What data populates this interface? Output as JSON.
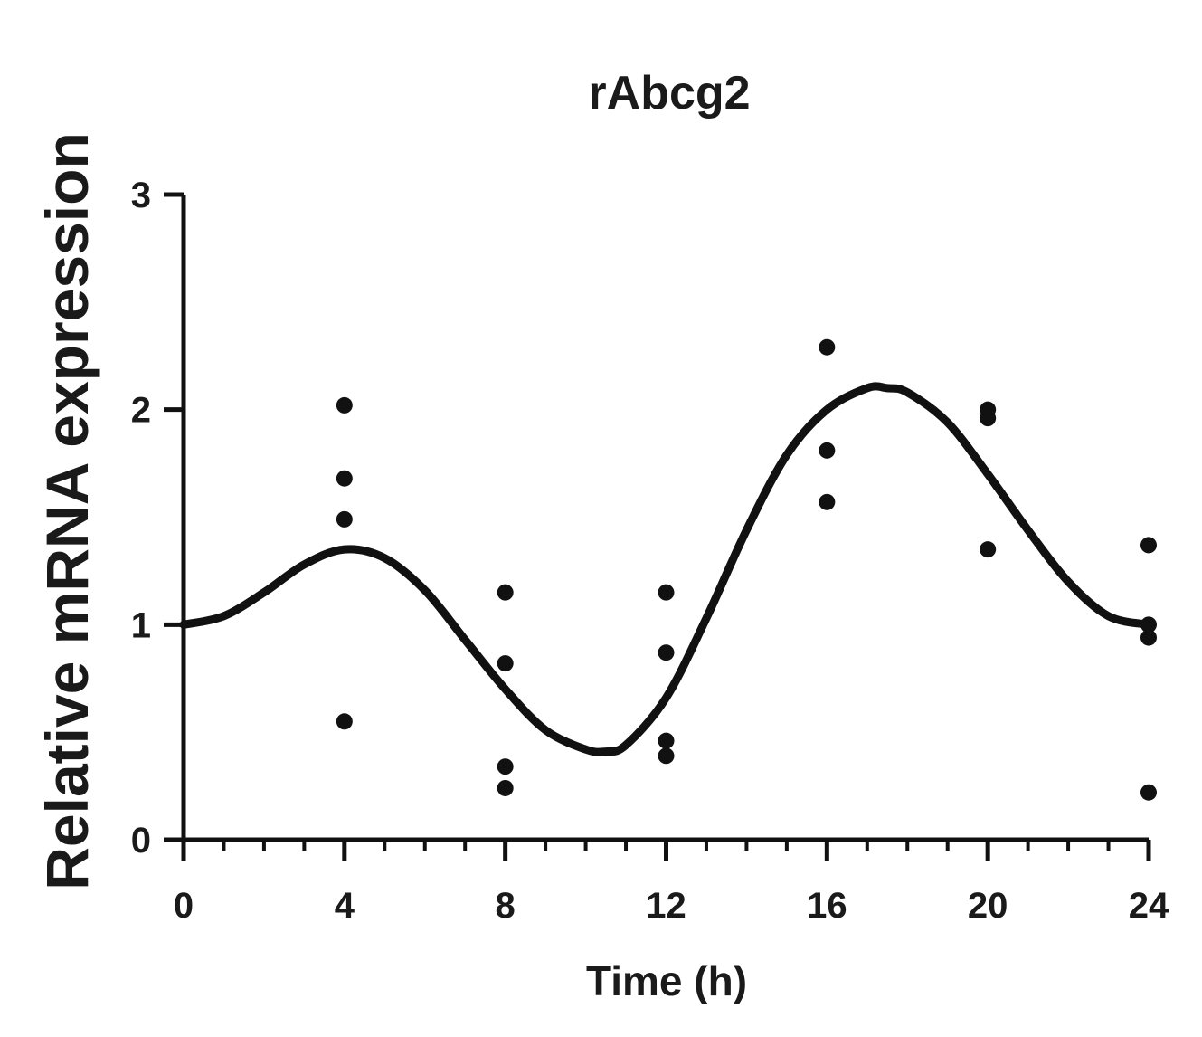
{
  "chart_data": {
    "type": "scatter",
    "title": "rAbcg2",
    "xlabel": "Time (h)",
    "ylabel": "Relative mRNA expression",
    "xlim": [
      0,
      24
    ],
    "ylim": [
      0,
      3
    ],
    "xticks": [
      0,
      4,
      8,
      12,
      16,
      20,
      24
    ],
    "yticks": [
      0,
      1,
      2,
      3
    ],
    "x_minor_step": 1,
    "grid": false,
    "legend": "none",
    "colors": {
      "points": "#111111",
      "curve": "#111111",
      "axis": "#111111"
    },
    "points": [
      {
        "x": 4,
        "y": 2.02
      },
      {
        "x": 4,
        "y": 1.68
      },
      {
        "x": 4,
        "y": 1.49
      },
      {
        "x": 4,
        "y": 0.55
      },
      {
        "x": 8,
        "y": 1.15
      },
      {
        "x": 8,
        "y": 0.82
      },
      {
        "x": 8,
        "y": 0.34
      },
      {
        "x": 8,
        "y": 0.24
      },
      {
        "x": 12,
        "y": 1.15
      },
      {
        "x": 12,
        "y": 0.87
      },
      {
        "x": 12,
        "y": 0.46
      },
      {
        "x": 12,
        "y": 0.39
      },
      {
        "x": 16,
        "y": 2.29
      },
      {
        "x": 16,
        "y": 1.81
      },
      {
        "x": 16,
        "y": 1.57
      },
      {
        "x": 20,
        "y": 2.0
      },
      {
        "x": 20,
        "y": 1.96
      },
      {
        "x": 20,
        "y": 1.35
      },
      {
        "x": 24,
        "y": 1.37
      },
      {
        "x": 24,
        "y": 1.0
      },
      {
        "x": 24,
        "y": 0.94
      },
      {
        "x": 24,
        "y": 0.22
      }
    ],
    "fit_curve": {
      "x": [
        0,
        1,
        2,
        3,
        4,
        5,
        6,
        7,
        8,
        9,
        10,
        10.5,
        11,
        12,
        13,
        14,
        15,
        16,
        17,
        17.5,
        18,
        19,
        20,
        21,
        22,
        23,
        24
      ],
      "y": [
        1.0,
        1.04,
        1.15,
        1.28,
        1.35,
        1.31,
        1.16,
        0.93,
        0.7,
        0.51,
        0.42,
        0.41,
        0.44,
        0.66,
        1.03,
        1.44,
        1.79,
        2.0,
        2.1,
        2.1,
        2.08,
        1.94,
        1.7,
        1.44,
        1.2,
        1.04,
        1.0
      ]
    }
  }
}
